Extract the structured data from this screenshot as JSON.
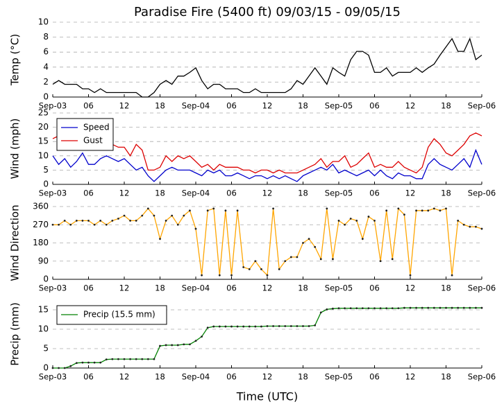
{
  "title": "Paradise Fire (5400 ft) 09/03/15 - 09/05/15",
  "xlabel": "Time (UTC)",
  "chart_data": [
    {
      "type": "line",
      "ylabel": "Temp (°C)",
      "xlim": [
        0,
        72
      ],
      "ylim": [
        0,
        10
      ],
      "yticks": [
        0,
        2,
        4,
        6,
        8,
        10
      ],
      "grid": true,
      "xticks": [
        {
          "value": 0,
          "label": "Sep-03"
        },
        {
          "value": 6,
          "label": "06"
        },
        {
          "value": 12,
          "label": "12"
        },
        {
          "value": 18,
          "label": "18"
        },
        {
          "value": 24,
          "label": "Sep-04"
        },
        {
          "value": 30,
          "label": "06"
        },
        {
          "value": 36,
          "label": "12"
        },
        {
          "value": 42,
          "label": "18"
        },
        {
          "value": 48,
          "label": "Sep-05"
        },
        {
          "value": 54,
          "label": "06"
        },
        {
          "value": 60,
          "label": "12"
        },
        {
          "value": 66,
          "label": "18"
        },
        {
          "value": 72,
          "label": "Sep-06"
        }
      ],
      "x": [
        0,
        1,
        2,
        3,
        4,
        5,
        6,
        7,
        8,
        9,
        10,
        11,
        12,
        13,
        14,
        15,
        16,
        17,
        18,
        19,
        20,
        21,
        22,
        23,
        24,
        25,
        26,
        27,
        28,
        29,
        30,
        31,
        32,
        33,
        34,
        35,
        36,
        37,
        38,
        39,
        40,
        41,
        42,
        43,
        44,
        45,
        46,
        47,
        48,
        49,
        50,
        51,
        52,
        53,
        54,
        55,
        56,
        57,
        58,
        59,
        60,
        61,
        62,
        63,
        64,
        65,
        66,
        67,
        68,
        69,
        70,
        71,
        72
      ],
      "series": [
        {
          "color": "#000000",
          "markers": false,
          "values": [
            1.7,
            2.2,
            1.7,
            1.7,
            1.7,
            1.1,
            1.1,
            0.6,
            1.1,
            0.6,
            0.6,
            0.6,
            0.6,
            0.6,
            0.6,
            0,
            0,
            0.6,
            1.7,
            2.2,
            1.7,
            2.8,
            2.8,
            3.3,
            3.9,
            2.2,
            1.1,
            1.7,
            1.7,
            1.1,
            1.1,
            1.1,
            0.6,
            0.6,
            1.1,
            0.6,
            0.6,
            0.6,
            0.6,
            0.6,
            1.1,
            2.2,
            1.7,
            2.8,
            3.9,
            2.8,
            1.7,
            3.9,
            3.3,
            2.8,
            5.0,
            6.1,
            6.1,
            5.6,
            3.3,
            3.3,
            3.9,
            2.8,
            3.3,
            3.3,
            3.3,
            3.9,
            3.3,
            3.9,
            4.4,
            5.6,
            6.7,
            7.8,
            6.1,
            6.1,
            7.8,
            5.0,
            5.6
          ]
        }
      ]
    },
    {
      "type": "line",
      "ylabel": "Wind (mph)",
      "xlim": [
        0,
        72
      ],
      "ylim": [
        0,
        25
      ],
      "yticks": [
        0,
        5,
        10,
        15,
        20,
        25
      ],
      "grid": true,
      "legend": "upper left",
      "xticks": [
        {
          "value": 0,
          "label": "Sep-03"
        },
        {
          "value": 6,
          "label": "06"
        },
        {
          "value": 12,
          "label": "12"
        },
        {
          "value": 18,
          "label": "18"
        },
        {
          "value": 24,
          "label": "Sep-04"
        },
        {
          "value": 30,
          "label": "06"
        },
        {
          "value": 36,
          "label": "12"
        },
        {
          "value": 42,
          "label": "18"
        },
        {
          "value": 48,
          "label": "Sep-05"
        },
        {
          "value": 54,
          "label": "06"
        },
        {
          "value": 60,
          "label": "12"
        },
        {
          "value": 66,
          "label": "18"
        },
        {
          "value": 72,
          "label": "Sep-06"
        }
      ],
      "x": [
        0,
        1,
        2,
        3,
        4,
        5,
        6,
        7,
        8,
        9,
        10,
        11,
        12,
        13,
        14,
        15,
        16,
        17,
        18,
        19,
        20,
        21,
        22,
        23,
        24,
        25,
        26,
        27,
        28,
        29,
        30,
        31,
        32,
        33,
        34,
        35,
        36,
        37,
        38,
        39,
        40,
        41,
        42,
        43,
        44,
        45,
        46,
        47,
        48,
        49,
        50,
        51,
        52,
        53,
        54,
        55,
        56,
        57,
        58,
        59,
        60,
        61,
        62,
        63,
        64,
        65,
        66,
        67,
        68,
        69,
        70,
        71,
        72
      ],
      "series": [
        {
          "name": "Speed",
          "color": "#0000cc",
          "markers": false,
          "values": [
            10,
            7,
            9,
            6,
            8,
            11,
            7,
            7,
            9,
            10,
            9,
            8,
            9,
            7,
            5,
            6,
            3,
            1,
            3,
            5,
            6,
            5,
            5,
            5,
            4,
            3,
            5,
            4,
            5,
            3,
            3,
            4,
            3,
            2,
            3,
            3,
            2,
            3,
            2,
            3,
            2,
            1,
            3,
            4,
            5,
            6,
            5,
            7,
            4,
            5,
            4,
            3,
            4,
            5,
            3,
            5,
            3,
            2,
            4,
            3,
            3,
            2,
            2,
            7,
            9,
            7,
            6,
            5,
            7,
            9,
            6,
            12,
            7
          ]
        },
        {
          "name": "Gust",
          "color": "#dd0000",
          "markers": false,
          "values": [
            16,
            17,
            14,
            13,
            13,
            14,
            12,
            13,
            12,
            13,
            14,
            13,
            13,
            10,
            14,
            12,
            5,
            5,
            6,
            10,
            8,
            10,
            9,
            10,
            8,
            6,
            7,
            5,
            7,
            6,
            6,
            6,
            5,
            5,
            4,
            5,
            5,
            4,
            5,
            4,
            4,
            4,
            5,
            6,
            7,
            9,
            6,
            8,
            8,
            10,
            6,
            7,
            9,
            11,
            6,
            7,
            6,
            6,
            8,
            6,
            5,
            4,
            6,
            13,
            16,
            14,
            11,
            10,
            12,
            14,
            17,
            18,
            17
          ]
        }
      ]
    },
    {
      "type": "line",
      "ylabel": "Wind Direction",
      "xlim": [
        0,
        72
      ],
      "ylim": [
        0,
        360
      ],
      "yticks": [
        0,
        90,
        180,
        270,
        360
      ],
      "grid": true,
      "xticks": [
        {
          "value": 0,
          "label": "Sep-03"
        },
        {
          "value": 6,
          "label": "06"
        },
        {
          "value": 12,
          "label": "12"
        },
        {
          "value": 18,
          "label": "18"
        },
        {
          "value": 24,
          "label": "Sep-04"
        },
        {
          "value": 30,
          "label": "06"
        },
        {
          "value": 36,
          "label": "12"
        },
        {
          "value": 42,
          "label": "18"
        },
        {
          "value": 48,
          "label": "Sep-05"
        },
        {
          "value": 54,
          "label": "06"
        },
        {
          "value": 60,
          "label": "12"
        },
        {
          "value": 66,
          "label": "18"
        },
        {
          "value": 72,
          "label": "Sep-06"
        }
      ],
      "x": [
        0,
        1,
        2,
        3,
        4,
        5,
        6,
        7,
        8,
        9,
        10,
        11,
        12,
        13,
        14,
        15,
        16,
        17,
        18,
        19,
        20,
        21,
        22,
        23,
        24,
        25,
        26,
        27,
        28,
        29,
        30,
        31,
        32,
        33,
        34,
        35,
        36,
        37,
        38,
        39,
        40,
        41,
        42,
        43,
        44,
        45,
        46,
        47,
        48,
        49,
        50,
        51,
        52,
        53,
        54,
        55,
        56,
        57,
        58,
        59,
        60,
        61,
        62,
        63,
        64,
        65,
        66,
        67,
        68,
        69,
        70,
        71,
        72
      ],
      "series": [
        {
          "color": "#ffa500",
          "markers": true,
          "values": [
            270,
            270,
            290,
            270,
            290,
            290,
            290,
            270,
            290,
            270,
            290,
            300,
            315,
            290,
            290,
            315,
            350,
            315,
            200,
            290,
            315,
            270,
            315,
            340,
            250,
            20,
            340,
            350,
            20,
            340,
            20,
            340,
            60,
            50,
            90,
            50,
            20,
            350,
            50,
            90,
            110,
            110,
            180,
            200,
            160,
            100,
            350,
            100,
            290,
            270,
            300,
            290,
            200,
            310,
            290,
            90,
            340,
            100,
            350,
            320,
            20,
            340,
            340,
            340,
            350,
            340,
            350,
            20,
            290,
            270,
            260,
            260,
            250
          ]
        }
      ]
    },
    {
      "type": "line",
      "ylabel": "Precip (mm)",
      "xlim": [
        0,
        72
      ],
      "ylim": [
        0,
        17.5
      ],
      "yticks": [
        0,
        5,
        10,
        15
      ],
      "grid": true,
      "legend": "upper left",
      "xticks": [
        {
          "value": 0,
          "label": "Sep-03"
        },
        {
          "value": 6,
          "label": "06"
        },
        {
          "value": 12,
          "label": "12"
        },
        {
          "value": 18,
          "label": "18"
        },
        {
          "value": 24,
          "label": "Sep-04"
        },
        {
          "value": 30,
          "label": "06"
        },
        {
          "value": 36,
          "label": "12"
        },
        {
          "value": 42,
          "label": "18"
        },
        {
          "value": 48,
          "label": "Sep-05"
        },
        {
          "value": 54,
          "label": "06"
        },
        {
          "value": 60,
          "label": "12"
        },
        {
          "value": 66,
          "label": "18"
        },
        {
          "value": 72,
          "label": "Sep-06"
        }
      ],
      "x": [
        0,
        1,
        2,
        3,
        4,
        5,
        6,
        7,
        8,
        9,
        10,
        11,
        12,
        13,
        14,
        15,
        16,
        17,
        18,
        19,
        20,
        21,
        22,
        23,
        24,
        25,
        26,
        27,
        28,
        29,
        30,
        31,
        32,
        33,
        34,
        35,
        36,
        37,
        38,
        39,
        40,
        41,
        42,
        43,
        44,
        45,
        46,
        47,
        48,
        49,
        50,
        51,
        52,
        53,
        54,
        55,
        56,
        57,
        58,
        59,
        60,
        61,
        62,
        63,
        64,
        65,
        66,
        67,
        68,
        69,
        70,
        71,
        72
      ],
      "series": [
        {
          "name": "Precip (15.5 mm)",
          "color": "#008000",
          "markers": true,
          "values": [
            0,
            0,
            0,
            0.5,
            1.3,
            1.4,
            1.4,
            1.4,
            1.4,
            2.2,
            2.3,
            2.3,
            2.3,
            2.3,
            2.3,
            2.3,
            2.3,
            2.3,
            5.7,
            5.9,
            5.9,
            5.9,
            6.1,
            6.1,
            7.0,
            8.1,
            10.4,
            10.7,
            10.7,
            10.7,
            10.7,
            10.7,
            10.7,
            10.7,
            10.7,
            10.7,
            10.8,
            10.8,
            10.8,
            10.8,
            10.8,
            10.8,
            10.8,
            10.8,
            11.0,
            14.3,
            15.1,
            15.3,
            15.4,
            15.4,
            15.4,
            15.4,
            15.4,
            15.4,
            15.4,
            15.4,
            15.4,
            15.4,
            15.4,
            15.5,
            15.5,
            15.5,
            15.5,
            15.5,
            15.5,
            15.5,
            15.5,
            15.5,
            15.5,
            15.5,
            15.5,
            15.5,
            15.5
          ]
        }
      ]
    }
  ]
}
